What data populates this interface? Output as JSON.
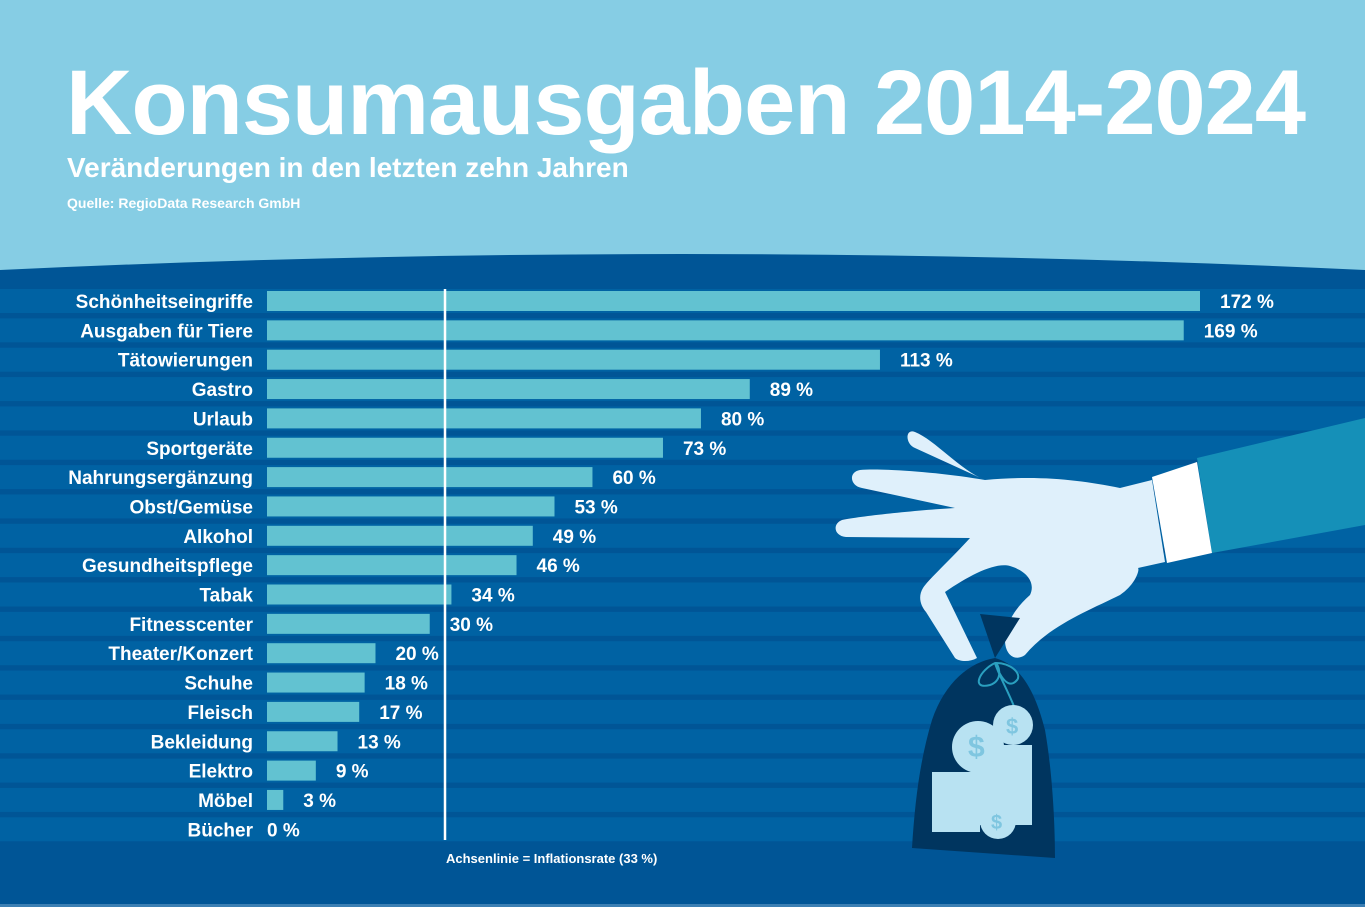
{
  "header": {
    "title": "Konsumausgaben 2014-2024",
    "subtitle": "Veränderungen in den letzten zehn Jahren",
    "source": "Quelle: RegioData Research GmbH"
  },
  "colors": {
    "header_bg": "#86cde4",
    "chart_bg": "#005596",
    "row_band": "#0062a3",
    "bar": "#62c2d1",
    "text": "#ffffff",
    "axis_line": "#ffffff",
    "hand": "#dff0fb",
    "sleeve": "#1590b8",
    "bag": "#00355f"
  },
  "chart_data": {
    "type": "bar",
    "orientation": "horizontal",
    "title": "Konsumausgaben 2014-2024",
    "subtitle": "Veränderungen in den letzten zehn Jahren",
    "categories": [
      "Schönheitseingriffe",
      "Ausgaben für Tiere",
      "Tätowierungen",
      "Gastro",
      "Urlaub",
      "Sportgeräte",
      "Nahrungsergänzung",
      "Obst/Gemüse",
      "Alkohol",
      "Gesundheitspflege",
      "Tabak",
      "Fitnesscenter",
      "Theater/Konzert",
      "Schuhe",
      "Fleisch",
      "Bekleidung",
      "Elektro",
      "Möbel",
      "Bücher"
    ],
    "values": [
      172,
      169,
      113,
      89,
      80,
      73,
      60,
      53,
      49,
      46,
      34,
      30,
      20,
      18,
      17,
      13,
      9,
      3,
      0
    ],
    "labels": [
      "172 %",
      "169 %",
      "113 %",
      "89 %",
      "80 %",
      "73 %",
      "60 %",
      "53 %",
      "49 %",
      "46 %",
      "34 %",
      "30 %",
      "20 %",
      "18 %",
      "17 %",
      "13 %",
      "9 %",
      "3 %",
      "0 %"
    ],
    "unit": "%",
    "xlim": [
      0,
      172
    ],
    "reference_line": {
      "value": 33,
      "label": "Achsenlinie = Inflationsrate (33 %)"
    },
    "grid": false,
    "legend": "none",
    "xlabel": "",
    "ylabel": ""
  }
}
